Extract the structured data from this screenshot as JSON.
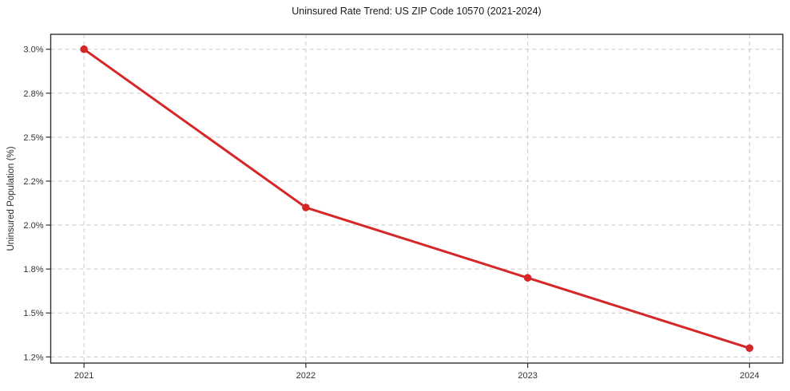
{
  "figure": {
    "title": "Uninsured Rate Trend: US ZIP Code 10570 (2021-2024)"
  },
  "chart_data": {
    "type": "line",
    "title": "Uninsured Rate Trend: US ZIP Code 10570 (2021-2024)",
    "xlabel": "",
    "ylabel": "Uninsured Population (%)",
    "x": [
      2021,
      2022,
      2023,
      2024
    ],
    "xtick_labels": [
      "2021",
      "2022",
      "2023",
      "2024"
    ],
    "yticks": [
      1.25,
      1.5,
      1.75,
      2.0,
      2.25,
      2.5,
      2.75,
      3.0
    ],
    "ytick_labels": [
      "1.2%",
      "1.5%",
      "1.8%",
      "2.0%",
      "2.2%",
      "2.5%",
      "2.8%",
      "3.0%"
    ],
    "series": [
      {
        "name": "Uninsured rate",
        "values": [
          3.0,
          2.1,
          1.7,
          1.3
        ]
      }
    ],
    "xlim": [
      2020.85,
      2024.15
    ],
    "ylim": [
      1.215,
      3.085
    ],
    "grid": true,
    "legend": "none",
    "marker": "circle",
    "line_color": "#d62728",
    "grid_color": "#c9c9c9",
    "frame_color": "#2f2f2f",
    "background_color": "#ffffff"
  }
}
